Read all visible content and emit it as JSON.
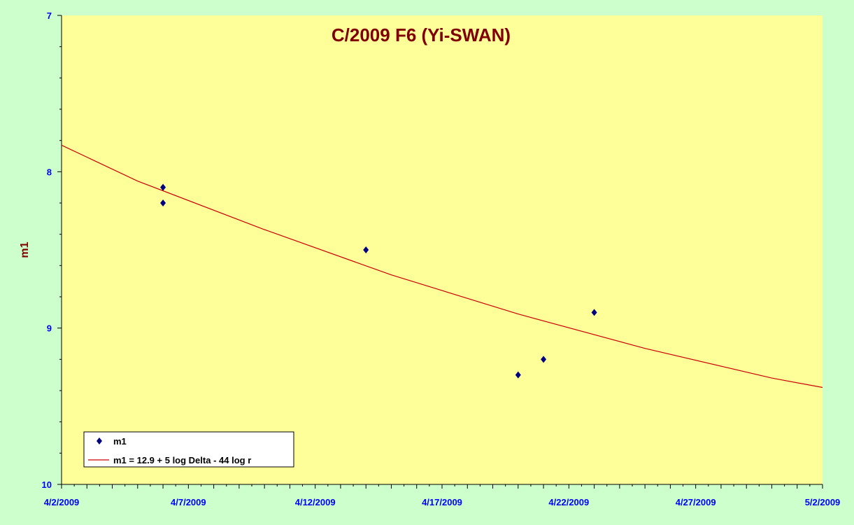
{
  "chart_data": {
    "type": "scatter",
    "title": "C/2009 F6 (Yi-SWAN)",
    "xlabel": "",
    "ylabel": "m1",
    "xlim": [
      "4/2/2009",
      "5/2/2009"
    ],
    "x_ticks": [
      "4/2/2009",
      "4/7/2009",
      "4/12/2009",
      "4/17/2009",
      "4/22/2009",
      "4/27/2009",
      "5/2/2009"
    ],
    "ylim": [
      7,
      10
    ],
    "y_reversed": true,
    "y_ticks": [
      7,
      8,
      9,
      10
    ],
    "grid": false,
    "legend": "bottom-left",
    "series": [
      {
        "name": "m1",
        "marker": "diamond",
        "color": "#000080",
        "points": [
          {
            "x": "4/6/2009",
            "y": 8.1
          },
          {
            "x": "4/6/2009",
            "y": 8.2
          },
          {
            "x": "4/14/2009",
            "y": 8.5
          },
          {
            "x": "4/20/2009",
            "y": 9.3
          },
          {
            "x": "4/21/2009",
            "y": 9.2
          },
          {
            "x": "4/23/2009",
            "y": 8.9
          }
        ]
      },
      {
        "name": "m1 = 12.9 + 5 log Delta - 44 log r",
        "type": "line",
        "color": "#cc0000",
        "points": [
          {
            "x": "4/2/2009",
            "y": 7.83
          },
          {
            "x": "4/5/2009",
            "y": 8.06
          },
          {
            "x": "4/10/2009",
            "y": 8.37
          },
          {
            "x": "4/15/2009",
            "y": 8.66
          },
          {
            "x": "4/20/2009",
            "y": 8.91
          },
          {
            "x": "4/25/2009",
            "y": 9.13
          },
          {
            "x": "4/30/2009",
            "y": 9.32
          },
          {
            "x": "5/2/2009",
            "y": 9.38
          }
        ]
      }
    ],
    "colors": {
      "page_background": "#ccffcc",
      "plot_background": "#ffff99",
      "title": "#800000",
      "tick_labels": "#0000ff"
    }
  }
}
